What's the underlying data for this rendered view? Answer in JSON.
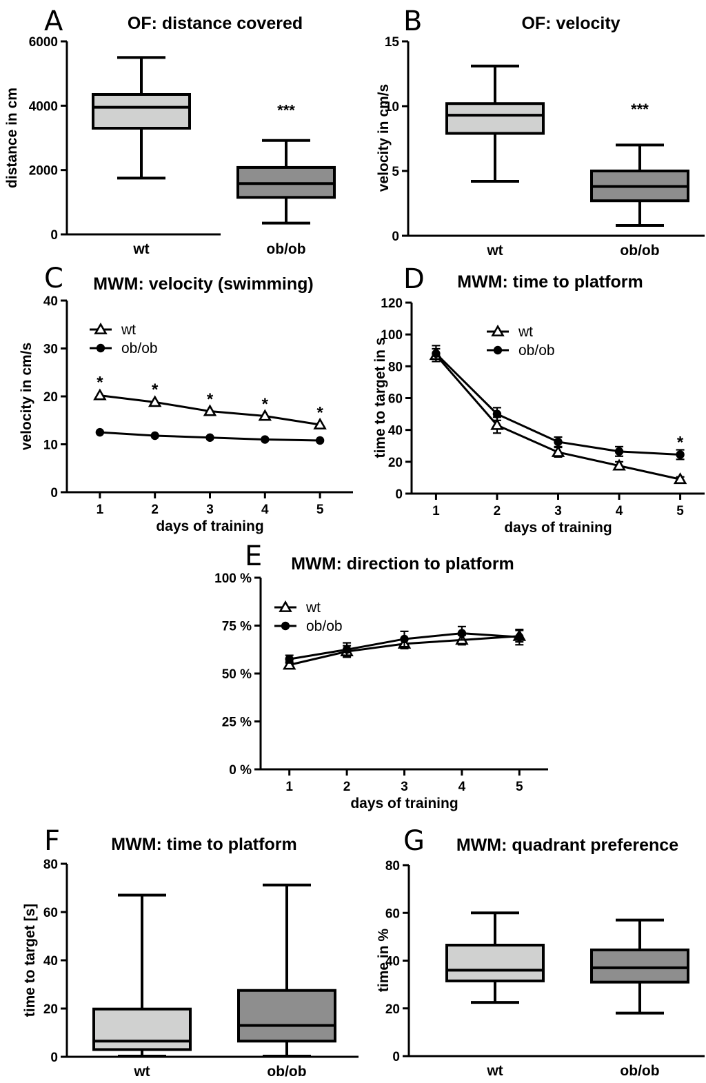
{
  "colors": {
    "wt_box": "#d0d1d0",
    "obob_box": "#8e8e8e",
    "ink": "#000000"
  },
  "chart_data": [
    {
      "panel": "A",
      "type": "box",
      "title": "OF: distance covered",
      "xlabel": "",
      "ylabel": "distance in cm",
      "ylim": [
        0,
        6000
      ],
      "yticks": [
        "0",
        "2000",
        "4000",
        "6000"
      ],
      "yticks_values": [
        0,
        2000,
        4000,
        6000
      ],
      "categories": [
        "wt",
        "ob/ob"
      ],
      "boxes": [
        {
          "min": 1750,
          "q1": 3300,
          "median": 3950,
          "q3": 4350,
          "max": 5500
        },
        {
          "min": 350,
          "q1": 1150,
          "median": 1580,
          "q3": 2080,
          "max": 2920
        }
      ],
      "annotations": [
        {
          "category_index": 1,
          "text": "***",
          "y": 3950
        }
      ]
    },
    {
      "panel": "B",
      "type": "box",
      "title": "OF: velocity",
      "xlabel": "",
      "ylabel": "velocity in cm/s",
      "ylim": [
        0,
        15
      ],
      "yticks": [
        "0",
        "5",
        "10",
        "15"
      ],
      "yticks_values": [
        0,
        5,
        10,
        15
      ],
      "categories": [
        "wt",
        "ob/ob"
      ],
      "boxes": [
        {
          "min": 4.2,
          "q1": 7.9,
          "median": 9.3,
          "q3": 10.2,
          "max": 13.1
        },
        {
          "min": 0.8,
          "q1": 2.7,
          "median": 3.8,
          "q3": 5.0,
          "max": 7.0
        }
      ],
      "annotations": [
        {
          "category_index": 1,
          "text": "***",
          "y": 10.0
        }
      ]
    },
    {
      "panel": "C",
      "type": "line",
      "title": "MWM: velocity (swimming)",
      "xlabel": "days of training",
      "ylabel": "velocity in cm/s",
      "ylim": [
        0,
        40
      ],
      "xlim": [
        0.4,
        5.6
      ],
      "yticks": [
        "0",
        "10",
        "20",
        "30",
        "40"
      ],
      "yticks_values": [
        0,
        10,
        20,
        30,
        40
      ],
      "x": [
        1,
        2,
        3,
        4,
        5
      ],
      "xticks": [
        "1",
        "2",
        "3",
        "4",
        "5"
      ],
      "series": [
        {
          "name": "wt",
          "marker": "triangle-open",
          "values": [
            20.2,
            18.8,
            16.9,
            15.9,
            14.1
          ]
        },
        {
          "name": "ob/ob",
          "marker": "circle-filled",
          "values": [
            12.5,
            11.8,
            11.4,
            11.0,
            10.8
          ]
        }
      ],
      "annotations": [
        {
          "x": 1,
          "text": "*",
          "y": 23.5
        },
        {
          "x": 2,
          "text": "*",
          "y": 22.0
        },
        {
          "x": 3,
          "text": "*",
          "y": 20.0
        },
        {
          "x": 4,
          "text": "*",
          "y": 19.0
        },
        {
          "x": 5,
          "text": "*",
          "y": 17.2
        }
      ],
      "legend": "top-left"
    },
    {
      "panel": "D",
      "type": "line",
      "title": "MWM: time to platform",
      "xlabel": "days of training",
      "ylabel": "time to target in s",
      "ylim": [
        0,
        120
      ],
      "xlim": [
        0.6,
        5.4
      ],
      "yticks": [
        "0",
        "20",
        "40",
        "60",
        "80",
        "100",
        "120"
      ],
      "yticks_values": [
        0,
        20,
        40,
        60,
        80,
        100,
        120
      ],
      "x": [
        1,
        2,
        3,
        4,
        5
      ],
      "xticks": [
        "1",
        "2",
        "3",
        "4",
        "5"
      ],
      "series": [
        {
          "name": "wt",
          "marker": "triangle-open",
          "values": [
            87,
            43,
            26,
            17.5,
            9
          ],
          "err": [
            4,
            5,
            3,
            2.5,
            1.5
          ]
        },
        {
          "name": "ob/ob",
          "marker": "circle-filled",
          "values": [
            88,
            50,
            32.5,
            26.5,
            24.5
          ],
          "err": [
            5,
            4,
            3,
            3,
            3
          ]
        }
      ],
      "annotations": [
        {
          "x": 5,
          "text": "*",
          "y": 34
        }
      ],
      "legend": "top-left"
    },
    {
      "panel": "E",
      "type": "line",
      "title": "MWM: direction to platform",
      "xlabel": "days of training",
      "ylabel": "",
      "ylim": [
        0,
        100
      ],
      "xlim": [
        0.5,
        5.5
      ],
      "yticks": [
        "0 %",
        "25 %",
        "50 %",
        "75 %",
        "100 %"
      ],
      "yticks_values": [
        0,
        25,
        50,
        75,
        100
      ],
      "x": [
        1,
        2,
        3,
        4,
        5
      ],
      "xticks": [
        "1",
        "2",
        "3",
        "4",
        "5"
      ],
      "series": [
        {
          "name": "wt",
          "marker": "triangle-open",
          "values": [
            54.5,
            61.5,
            65.5,
            67.5,
            69.5
          ],
          "err": [
            1.5,
            3.0,
            2.5,
            2.5,
            3.0
          ]
        },
        {
          "name": "ob/ob",
          "marker": "circle-filled",
          "values": [
            57.5,
            62.5,
            68.0,
            71.0,
            69.0
          ],
          "err": [
            2.0,
            3.5,
            4.0,
            3.5,
            4.0
          ]
        }
      ],
      "legend": "top-left"
    },
    {
      "panel": "F",
      "type": "box",
      "title": "MWM: time to platform",
      "xlabel": "",
      "ylabel": "time to target [s]",
      "ylim": [
        0,
        80
      ],
      "yticks": [
        "0",
        "20",
        "40",
        "60",
        "80"
      ],
      "yticks_values": [
        0,
        20,
        40,
        60,
        80
      ],
      "categories": [
        "wt",
        "ob/ob"
      ],
      "boxes": [
        {
          "min": 0.3,
          "q1": 3.0,
          "median": 6.5,
          "q3": 19.8,
          "max": 67.0
        },
        {
          "min": 0.3,
          "q1": 6.5,
          "median": 13.0,
          "q3": 27.5,
          "max": 71.2
        }
      ]
    },
    {
      "panel": "G",
      "type": "box",
      "title": "MWM: quadrant preference",
      "xlabel": "",
      "ylabel": "time in %",
      "ylim": [
        0,
        80
      ],
      "yticks": [
        "0",
        "20",
        "40",
        "60",
        "80"
      ],
      "yticks_values": [
        0,
        20,
        40,
        60,
        80
      ],
      "categories": [
        "wt",
        "ob/ob"
      ],
      "boxes": [
        {
          "min": 22.5,
          "q1": 31.5,
          "median": 36.0,
          "q3": 46.5,
          "max": 60.0
        },
        {
          "min": 18.0,
          "q1": 31.0,
          "median": 37.0,
          "q3": 44.5,
          "max": 57.0
        }
      ]
    }
  ]
}
